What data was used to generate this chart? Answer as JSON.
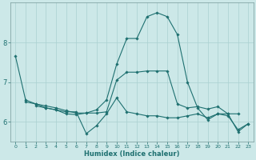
{
  "xlabel": "Humidex (Indice chaleur)",
  "bg_color": "#cce8e8",
  "grid_color": "#aad0d0",
  "line_color": "#1e7070",
  "x_values": [
    0,
    1,
    2,
    3,
    4,
    5,
    6,
    7,
    8,
    9,
    10,
    11,
    12,
    13,
    14,
    15,
    16,
    17,
    18,
    19,
    20,
    21,
    22,
    23
  ],
  "series": [
    [
      7.65,
      6.55,
      6.45,
      6.35,
      6.3,
      6.25,
      6.25,
      5.7,
      5.9,
      6.2,
      6.6,
      6.25,
      6.2,
      6.15,
      6.15,
      6.1,
      6.1,
      6.15,
      6.2,
      6.1,
      6.2,
      6.15,
      5.8,
      5.95
    ],
    [
      null,
      null,
      6.4,
      6.35,
      6.3,
      6.2,
      6.18,
      6.22,
      6.22,
      6.25,
      7.05,
      7.25,
      7.25,
      7.28,
      7.28,
      7.28,
      6.45,
      6.35,
      6.38,
      6.32,
      6.38,
      6.2,
      6.2,
      null
    ],
    [
      null,
      6.5,
      6.45,
      6.4,
      6.35,
      6.28,
      6.22,
      6.22,
      6.3,
      6.55,
      7.45,
      8.1,
      8.1,
      8.65,
      8.75,
      8.65,
      8.2,
      7.0,
      6.35,
      6.05,
      6.2,
      6.2,
      5.75,
      5.95
    ]
  ],
  "ylim": [
    5.5,
    9.0
  ],
  "yticks": [
    6,
    7,
    8
  ],
  "xlim": [
    -0.5,
    23.5
  ],
  "ytick_fontsize": 6,
  "xtick_fontsize": 4.5,
  "xlabel_fontsize": 6,
  "linewidth": 0.8,
  "markersize": 1.8
}
